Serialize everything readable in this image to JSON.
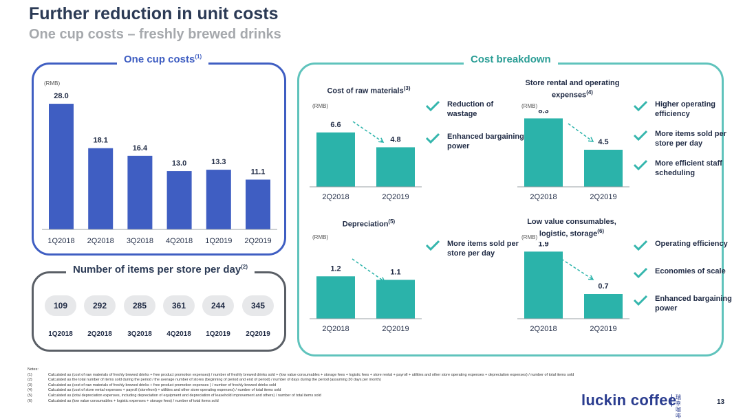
{
  "slide": {
    "title": "Further reduction in unit costs",
    "subtitle": "One cup costs – freshly brewed drinks",
    "page_number": "13"
  },
  "brand": {
    "name": "luckin coffee",
    "chinese": "瑞幸咖啡",
    "color": "#2a3c8f"
  },
  "one_cup": {
    "label": "One cup costs",
    "note": "(1)",
    "unit": "(RMB)"
  },
  "items_per_store": {
    "label": "Number of items per store per day",
    "note": "(2)",
    "values": [
      "109",
      "292",
      "285",
      "361",
      "244",
      "345"
    ],
    "periods": [
      "1Q2018",
      "2Q2018",
      "3Q2018",
      "4Q2018",
      "1Q2019",
      "2Q2019"
    ]
  },
  "breakdown": {
    "label": "Cost breakdown",
    "unit": "(RMB)",
    "raw_materials": {
      "title": "Cost of raw materials",
      "note": "(3)",
      "bullets": [
        "Reduction of wastage",
        "Enhanced bargaining power"
      ]
    },
    "store_rental": {
      "title": "Store rental and operating expenses",
      "note": "(4)",
      "bullets": [
        "Higher operating efficiency",
        "More items sold per store per day",
        "More efficient staff scheduling"
      ]
    },
    "depreciation": {
      "title": "Depreciation",
      "note": "(5)",
      "bullets": [
        "More items sold per store per day"
      ]
    },
    "low_value": {
      "title": "Low value consumables, logistic, storage",
      "note": "(6)",
      "bullets": [
        "Operating efficiency",
        "Economies of scale",
        "Enhanced bargaining power"
      ]
    }
  },
  "colors": {
    "navy_bar": "#3f5ec2",
    "teal_bar": "#2bb3aa",
    "teal_check": "#35b6ad",
    "panel_grey": "#5a5f66"
  },
  "notes": {
    "heading": "Notes:",
    "items": [
      {
        "key": "(1)",
        "text": "Calculated as (cost of raw materials of freshly brewed drinks + free product promotion expenses) / number of freshly brewed drinks sold + (low value consumables + storage fees + logistic fees + store rental + payroll + utilities and other store operating expenses + depreciation expenses) / number of total items sold"
      },
      {
        "key": "(2)",
        "text": "Calculated as the total number of items sold during the period / the average number of stores (beginning of period and end of period) / number of days during the period (assuming 30 days per month)"
      },
      {
        "key": "(3)",
        "text": "Calculated as (cost of raw materials of freshly brewed drinks + free product promotion expenses ) / number of freshly brewed drinks sold"
      },
      {
        "key": "(4)",
        "text": "Calculated as (cost of store rental expenses + payroll (storefront) + utilities and other store operating expenses) / number of total items sold"
      },
      {
        "key": "(5)",
        "text": "Calculated as (total depreciation expenses, including depreciation of equipment and depreciation of leasehold improvement and others) / number of total items sold"
      },
      {
        "key": "(6)",
        "text": "Calculated as (low value consumables + logistic expenses + storage fees) / number of total items sold"
      }
    ]
  },
  "chart_data": [
    {
      "id": "one_cup_costs",
      "type": "bar",
      "title": "One cup costs",
      "ylabel": "RMB",
      "categories": [
        "1Q2018",
        "2Q2018",
        "3Q2018",
        "4Q2018",
        "1Q2019",
        "2Q2019"
      ],
      "values": [
        28.0,
        18.1,
        16.4,
        13.0,
        13.3,
        11.1
      ],
      "labels": [
        "28.0",
        "18.1",
        "16.4",
        "13.0",
        "13.3",
        "11.1"
      ],
      "ylim": [
        0,
        30
      ]
    },
    {
      "id": "raw_materials",
      "type": "bar",
      "title": "Cost of raw materials",
      "ylabel": "RMB",
      "categories": [
        "2Q2018",
        "2Q2019"
      ],
      "values": [
        6.6,
        4.8
      ],
      "labels": [
        "6.6",
        "4.8"
      ],
      "ylim": [
        0,
        9
      ]
    },
    {
      "id": "store_rental",
      "type": "bar",
      "title": "Store rental and operating expenses",
      "ylabel": "RMB",
      "categories": [
        "2Q2018",
        "2Q2019"
      ],
      "values": [
        8.3,
        4.5
      ],
      "labels": [
        "8.3",
        "4.5"
      ],
      "ylim": [
        0,
        9
      ]
    },
    {
      "id": "depreciation",
      "type": "bar",
      "title": "Depreciation",
      "ylabel": "RMB",
      "categories": [
        "2Q2018",
        "2Q2019"
      ],
      "values": [
        1.2,
        1.1
      ],
      "labels": [
        "1.2",
        "1.1"
      ],
      "ylim": [
        0,
        2.1
      ]
    },
    {
      "id": "low_value",
      "type": "bar",
      "title": "Low value consumables, logistic, storage",
      "ylabel": "RMB",
      "categories": [
        "2Q2018",
        "2Q2019"
      ],
      "values": [
        1.9,
        0.7
      ],
      "labels": [
        "1.9",
        "0.7"
      ],
      "ylim": [
        0,
        2.1
      ]
    }
  ]
}
